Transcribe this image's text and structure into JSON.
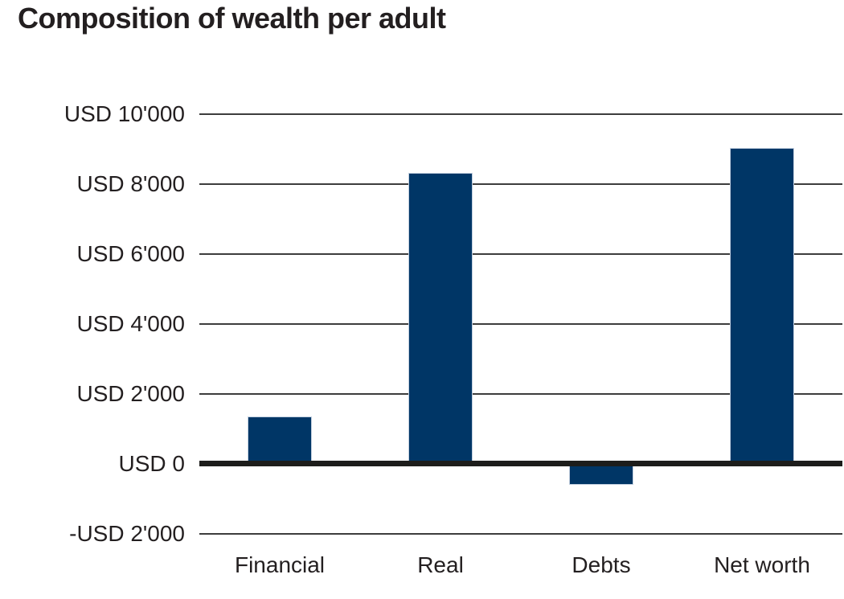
{
  "chart_data": {
    "type": "bar",
    "title": "Composition of wealth per adult",
    "categories": [
      "Financial",
      "Real",
      "Debts",
      "Net worth"
    ],
    "values": [
      1340,
      8300,
      -620,
      9030
    ],
    "xlabel": "",
    "ylabel": "USD",
    "ylim": [
      -2000,
      10000
    ],
    "ytick_interval": 2000,
    "yticks": [
      {
        "value": 10000,
        "label": "USD 10'000"
      },
      {
        "value": 8000,
        "label": "USD 8'000"
      },
      {
        "value": 6000,
        "label": "USD 6'000"
      },
      {
        "value": 4000,
        "label": "USD 4'000"
      },
      {
        "value": 2000,
        "label": "USD 2'000"
      },
      {
        "value": 0,
        "label": "USD 0"
      },
      {
        "value": -2000,
        "label": "-USD 2'000"
      }
    ],
    "grid": true,
    "legend": "none",
    "colors": {
      "bar": "#003666",
      "bar_border": "#c3cfdf",
      "gridline": "#3d3d3d",
      "zero_line": "#1d1d1b",
      "text": "#231f20",
      "background": "#ffffff"
    }
  }
}
